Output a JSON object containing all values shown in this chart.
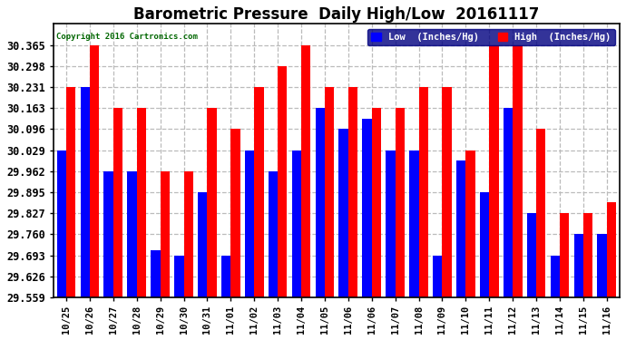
{
  "title": "Barometric Pressure  Daily High/Low  20161117",
  "copyright": "Copyright 2016 Cartronics.com",
  "categories": [
    "10/25",
    "10/26",
    "10/27",
    "10/28",
    "10/29",
    "10/30",
    "10/31",
    "11/01",
    "11/02",
    "11/03",
    "11/04",
    "11/05",
    "11/06",
    "11/06",
    "11/07",
    "11/08",
    "11/09",
    "11/10",
    "11/11",
    "11/12",
    "11/13",
    "11/14",
    "11/15",
    "11/16"
  ],
  "low_values": [
    30.029,
    30.231,
    29.962,
    29.962,
    29.71,
    29.693,
    29.895,
    29.693,
    30.029,
    29.962,
    30.029,
    30.163,
    30.096,
    30.13,
    30.029,
    30.029,
    29.693,
    29.997,
    29.895,
    30.163,
    29.827,
    29.693,
    29.76,
    29.76
  ],
  "high_values": [
    30.231,
    30.365,
    30.163,
    30.163,
    29.962,
    29.962,
    30.163,
    30.096,
    30.231,
    30.298,
    30.365,
    30.231,
    30.231,
    30.163,
    30.163,
    30.231,
    30.231,
    30.029,
    30.365,
    30.365,
    30.096,
    29.827,
    29.827,
    29.862
  ],
  "low_color": "#0000FF",
  "high_color": "#FF0000",
  "bg_color": "#FFFFFF",
  "grid_color": "#AAAAAA",
  "ylim_min": 29.559,
  "ylim_max": 30.432,
  "yticks": [
    29.559,
    29.626,
    29.693,
    29.76,
    29.827,
    29.895,
    29.962,
    30.029,
    30.096,
    30.163,
    30.231,
    30.298,
    30.365
  ],
  "title_fontsize": 12,
  "legend_label_low": "Low  (Inches/Hg)",
  "legend_label_high": "High  (Inches/Hg)"
}
